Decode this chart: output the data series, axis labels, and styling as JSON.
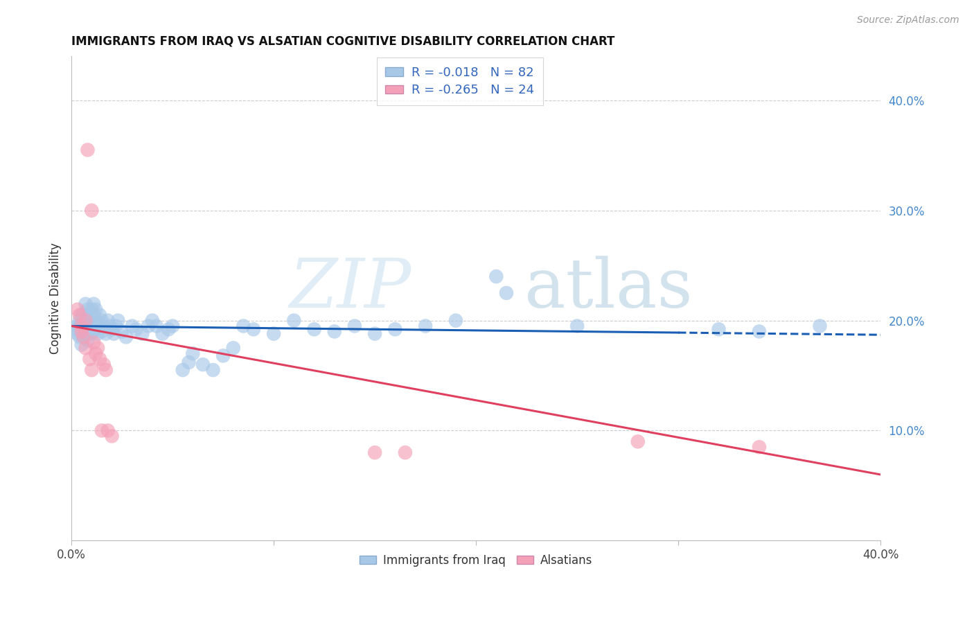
{
  "title": "IMMIGRANTS FROM IRAQ VS ALSATIAN COGNITIVE DISABILITY CORRELATION CHART",
  "source": "Source: ZipAtlas.com",
  "ylabel": "Cognitive Disability",
  "right_yticks": [
    "40.0%",
    "30.0%",
    "20.0%",
    "10.0%"
  ],
  "right_ytick_vals": [
    0.4,
    0.3,
    0.2,
    0.1
  ],
  "xlim": [
    0.0,
    0.4
  ],
  "ylim": [
    0.0,
    0.44
  ],
  "legend_R1": "R = -0.018",
  "legend_N1": "N = 82",
  "legend_R2": "R = -0.265",
  "legend_N2": "N = 24",
  "legend_label1": "Immigrants from Iraq",
  "legend_label2": "Alsatians",
  "blue_color": "#a8c8e8",
  "pink_color": "#f4a0b8",
  "blue_line_color": "#1a5fb4",
  "pink_line_color": "#e04060",
  "blue_scatter": [
    [
      0.002,
      0.192
    ],
    [
      0.003,
      0.195
    ],
    [
      0.003,
      0.188
    ],
    [
      0.004,
      0.2
    ],
    [
      0.004,
      0.185
    ],
    [
      0.004,
      0.195
    ],
    [
      0.005,
      0.192
    ],
    [
      0.005,
      0.188
    ],
    [
      0.005,
      0.205
    ],
    [
      0.005,
      0.178
    ],
    [
      0.006,
      0.198
    ],
    [
      0.006,
      0.19
    ],
    [
      0.006,
      0.185
    ],
    [
      0.007,
      0.215
    ],
    [
      0.007,
      0.2
    ],
    [
      0.007,
      0.192
    ],
    [
      0.008,
      0.21
    ],
    [
      0.008,
      0.195
    ],
    [
      0.008,
      0.188
    ],
    [
      0.008,
      0.182
    ],
    [
      0.009,
      0.205
    ],
    [
      0.009,
      0.198
    ],
    [
      0.009,
      0.192
    ],
    [
      0.01,
      0.21
    ],
    [
      0.01,
      0.2
    ],
    [
      0.01,
      0.195
    ],
    [
      0.01,
      0.188
    ],
    [
      0.011,
      0.215
    ],
    [
      0.011,
      0.205
    ],
    [
      0.011,
      0.198
    ],
    [
      0.012,
      0.21
    ],
    [
      0.012,
      0.2
    ],
    [
      0.012,
      0.192
    ],
    [
      0.013,
      0.198
    ],
    [
      0.013,
      0.188
    ],
    [
      0.014,
      0.205
    ],
    [
      0.014,
      0.195
    ],
    [
      0.015,
      0.2
    ],
    [
      0.015,
      0.19
    ],
    [
      0.016,
      0.195
    ],
    [
      0.017,
      0.188
    ],
    [
      0.018,
      0.2
    ],
    [
      0.019,
      0.195
    ],
    [
      0.02,
      0.192
    ],
    [
      0.021,
      0.188
    ],
    [
      0.022,
      0.195
    ],
    [
      0.023,
      0.2
    ],
    [
      0.025,
      0.19
    ],
    [
      0.027,
      0.185
    ],
    [
      0.03,
      0.195
    ],
    [
      0.032,
      0.192
    ],
    [
      0.035,
      0.188
    ],
    [
      0.038,
      0.195
    ],
    [
      0.04,
      0.2
    ],
    [
      0.042,
      0.195
    ],
    [
      0.045,
      0.188
    ],
    [
      0.048,
      0.192
    ],
    [
      0.05,
      0.195
    ],
    [
      0.055,
      0.155
    ],
    [
      0.058,
      0.162
    ],
    [
      0.06,
      0.17
    ],
    [
      0.065,
      0.16
    ],
    [
      0.07,
      0.155
    ],
    [
      0.075,
      0.168
    ],
    [
      0.08,
      0.175
    ],
    [
      0.085,
      0.195
    ],
    [
      0.09,
      0.192
    ],
    [
      0.1,
      0.188
    ],
    [
      0.11,
      0.2
    ],
    [
      0.12,
      0.192
    ],
    [
      0.13,
      0.19
    ],
    [
      0.14,
      0.195
    ],
    [
      0.15,
      0.188
    ],
    [
      0.16,
      0.192
    ],
    [
      0.175,
      0.195
    ],
    [
      0.19,
      0.2
    ],
    [
      0.21,
      0.24
    ],
    [
      0.215,
      0.225
    ],
    [
      0.25,
      0.195
    ],
    [
      0.32,
      0.192
    ],
    [
      0.34,
      0.19
    ],
    [
      0.37,
      0.195
    ]
  ],
  "pink_scatter": [
    [
      0.003,
      0.21
    ],
    [
      0.004,
      0.205
    ],
    [
      0.005,
      0.195
    ],
    [
      0.005,
      0.19
    ],
    [
      0.006,
      0.185
    ],
    [
      0.007,
      0.175
    ],
    [
      0.007,
      0.2
    ],
    [
      0.008,
      0.355
    ],
    [
      0.009,
      0.165
    ],
    [
      0.01,
      0.155
    ],
    [
      0.01,
      0.3
    ],
    [
      0.011,
      0.18
    ],
    [
      0.012,
      0.17
    ],
    [
      0.013,
      0.175
    ],
    [
      0.014,
      0.165
    ],
    [
      0.015,
      0.1
    ],
    [
      0.016,
      0.16
    ],
    [
      0.017,
      0.155
    ],
    [
      0.018,
      0.1
    ],
    [
      0.02,
      0.095
    ],
    [
      0.15,
      0.08
    ],
    [
      0.165,
      0.08
    ],
    [
      0.28,
      0.09
    ],
    [
      0.34,
      0.085
    ]
  ],
  "blue_trendline_solid": [
    [
      0.0,
      0.195
    ],
    [
      0.3,
      0.189
    ]
  ],
  "blue_trendline_dashed": [
    [
      0.3,
      0.189
    ],
    [
      0.4,
      0.187
    ]
  ],
  "pink_trendline": [
    [
      0.0,
      0.195
    ],
    [
      0.4,
      0.06
    ]
  ]
}
